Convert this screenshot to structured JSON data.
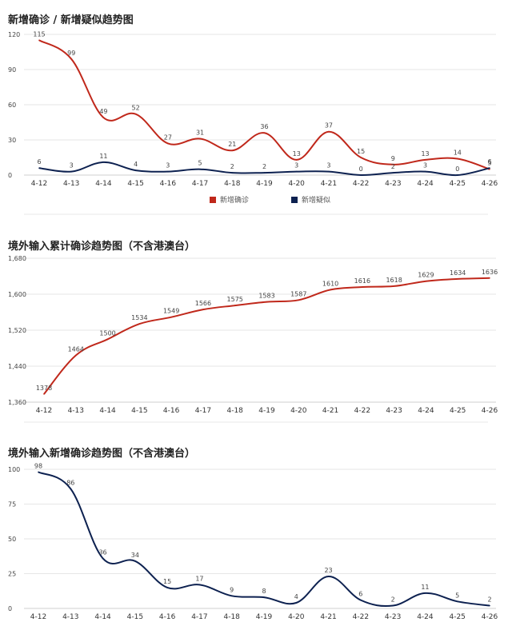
{
  "chart_data": [
    {
      "type": "line",
      "title": "新增确诊 / 新增疑似趋势图",
      "categories": [
        "4-12",
        "4-13",
        "4-14",
        "4-15",
        "4-16",
        "4-17",
        "4-18",
        "4-19",
        "4-20",
        "4-21",
        "4-22",
        "4-23",
        "4-24",
        "4-25",
        "4-26"
      ],
      "ylim": [
        0,
        120
      ],
      "yticks": [
        "0",
        "30",
        "60",
        "90",
        "120"
      ],
      "series": [
        {
          "name": "新增确诊",
          "color": "#c0281b",
          "values": [
            115,
            99,
            49,
            52,
            27,
            31,
            21,
            36,
            13,
            37,
            15,
            9,
            13,
            14,
            5
          ]
        },
        {
          "name": "新增疑似",
          "color": "#0d2150",
          "values": [
            6,
            3,
            11,
            4,
            3,
            5,
            2,
            2,
            3,
            3,
            0,
            2,
            3,
            0,
            6
          ]
        }
      ],
      "legend": "bottom"
    },
    {
      "type": "line",
      "title": "境外输入累计确诊趋势图（不含港澳台）",
      "categories": [
        "4-12",
        "4-13",
        "4-14",
        "4-15",
        "4-16",
        "4-17",
        "4-18",
        "4-19",
        "4-20",
        "4-21",
        "4-22",
        "4-23",
        "4-24",
        "4-25",
        "4-26"
      ],
      "ylim": [
        1360,
        1680
      ],
      "yticks": [
        "1,360",
        "1,440",
        "1,520",
        "1,600",
        "1,680"
      ],
      "series": [
        {
          "name": "",
          "color": "#c0281b",
          "values": [
            1378,
            1464,
            1500,
            1534,
            1549,
            1566,
            1575,
            1583,
            1587,
            1610,
            1616,
            1618,
            1629,
            1634,
            1636
          ]
        }
      ]
    },
    {
      "type": "line",
      "title": "境外输入新增确诊趋势图（不含港澳台）",
      "categories": [
        "4-12",
        "4-13",
        "4-14",
        "4-15",
        "4-16",
        "4-17",
        "4-18",
        "4-19",
        "4-20",
        "4-21",
        "4-22",
        "4-23",
        "4-24",
        "4-25",
        "4-26"
      ],
      "ylim": [
        0,
        100
      ],
      "yticks": [
        "0",
        "25",
        "50",
        "75",
        "100"
      ],
      "series": [
        {
          "name": "",
          "color": "#0d2150",
          "values": [
            98,
            86,
            36,
            34,
            15,
            17,
            9,
            8,
            4,
            23,
            6,
            2,
            11,
            5,
            2
          ]
        }
      ]
    }
  ]
}
